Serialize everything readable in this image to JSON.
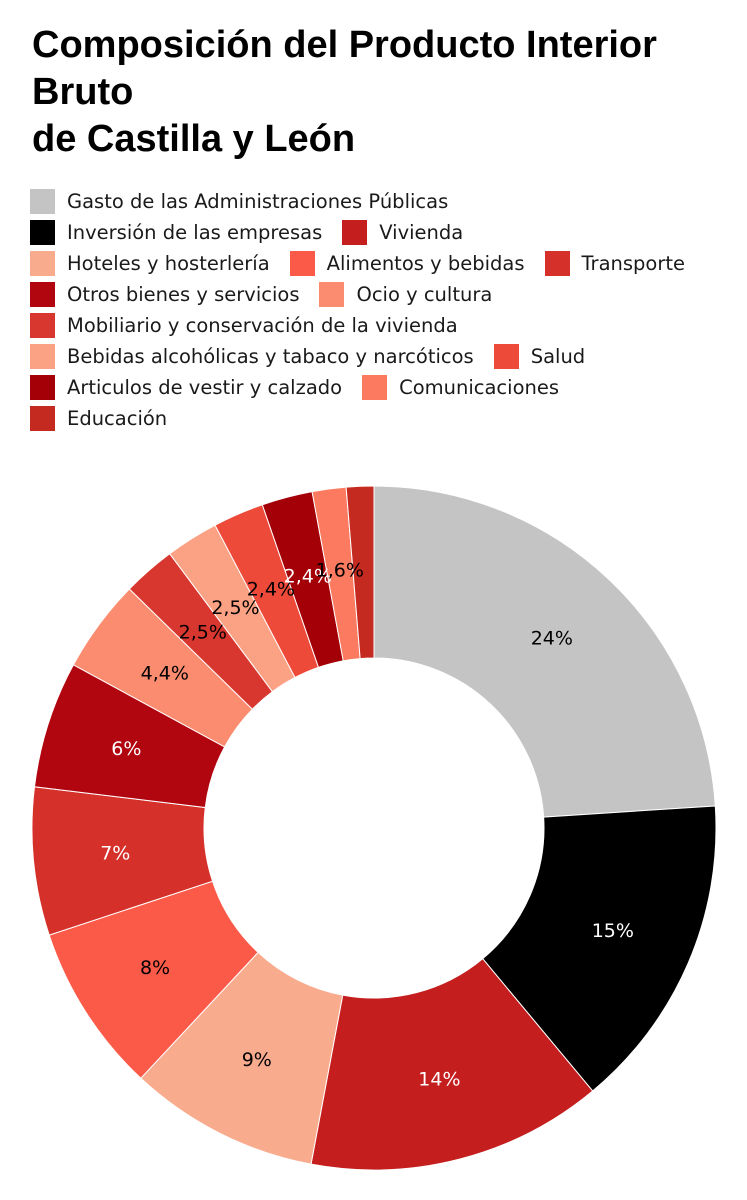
{
  "chart_data": {
    "type": "pie",
    "variant": "donut",
    "title_lines": [
      "Composición del Producto Interior",
      "Bruto",
      "de Castilla y León"
    ],
    "legend_rows": [
      [
        0
      ],
      [
        1,
        2
      ],
      [
        3,
        4,
        5
      ],
      [
        6,
        7
      ],
      [
        8
      ],
      [
        9,
        10
      ],
      [
        11,
        12
      ],
      [
        13
      ]
    ],
    "slices": [
      {
        "name": "Gasto de las Administraciones Públicas",
        "value": 24,
        "label": "24%",
        "color": "#c4c4c4",
        "label_color": "#000000"
      },
      {
        "name": "Inversión de las empresas",
        "value": 15,
        "label": "15%",
        "color": "#000000",
        "label_color": "#ffffff"
      },
      {
        "name": "Vivienda",
        "value": 14,
        "label": "14%",
        "color": "#c41e1e",
        "label_color": "#ffffff"
      },
      {
        "name": "Hoteles y hosterlería",
        "value": 9,
        "label": "9%",
        "color": "#f9ab8e",
        "label_color": "#000000"
      },
      {
        "name": "Alimentos y bebidas",
        "value": 8,
        "label": "8%",
        "color": "#fb5a48",
        "label_color": "#000000"
      },
      {
        "name": "Transporte",
        "value": 7,
        "label": "7%",
        "color": "#d5302a",
        "label_color": "#ffffff"
      },
      {
        "name": "Otros bienes y servicios",
        "value": 6,
        "label": "6%",
        "color": "#b10510",
        "label_color": "#ffffff"
      },
      {
        "name": "Ocio y cultura",
        "value": 4.4,
        "label": "4,4%",
        "color": "#fb8c6f",
        "label_color": "#000000"
      },
      {
        "name": "Mobiliario y conservación de la vivienda",
        "value": 2.5,
        "label": "2,5%",
        "color": "#d8372f",
        "label_color": "#000000"
      },
      {
        "name": "Bebidas alcohólicas y tabaco y narcóticos",
        "value": 2.5,
        "label": "2,5%",
        "color": "#fba284",
        "label_color": "#000000"
      },
      {
        "name": "Salud",
        "value": 2.4,
        "label": "2,4%",
        "color": "#ee4a3a",
        "label_color": "#000000"
      },
      {
        "name": "Articulos de vestir y calzado",
        "value": 2.4,
        "label": "2,4%",
        "color": "#a30008",
        "label_color": "#ffffff"
      },
      {
        "name": "Comunicaciones",
        "value": 1.6,
        "label": "1,6%",
        "color": "#fc7a60",
        "label_color": "#000000"
      },
      {
        "name": "Educación",
        "value": 1.3,
        "label": "",
        "color": "#c52a21",
        "label_color": "#ffffff"
      }
    ]
  }
}
